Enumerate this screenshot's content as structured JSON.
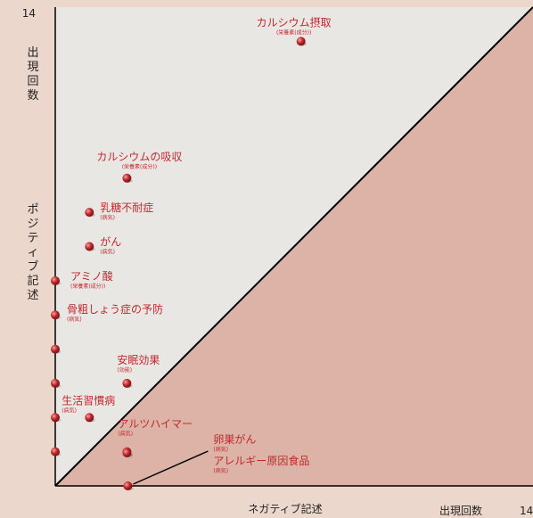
{
  "chart_data": {
    "type": "scatter",
    "title": "",
    "xlabel": "ネガティブ記述",
    "x_count_label": "出現回数",
    "ylabel": "ポジティブ記述",
    "y_count_label": "出現回数",
    "xlim": [
      0,
      14
    ],
    "ylim": [
      0,
      14
    ],
    "x_max_tick": "14",
    "y_max_tick": "14",
    "diagonal": true,
    "colors": {
      "upper_region": "#e9e7e4",
      "lower_region": "#dcb3a6",
      "marker": "#c0272d",
      "label": "#c2282e"
    },
    "points": [
      {
        "name": "カルシウム摂取",
        "sub": "(栄養素(成分))",
        "x": 7.2,
        "y": 13.0
      },
      {
        "name": "カルシウムの吸収",
        "sub": "(栄養素(成分))",
        "x": 2.1,
        "y": 9.0
      },
      {
        "name": "乳糖不耐症",
        "sub": "(病気)",
        "x": 1.0,
        "y": 8.0
      },
      {
        "name": "がん",
        "sub": "(病気)",
        "x": 1.0,
        "y": 7.0
      },
      {
        "name": "アミノ酸",
        "sub": "(栄養素(成分))",
        "x": 0,
        "y": 6.0
      },
      {
        "name": "骨粗しょう症の予防",
        "sub": "(病気)",
        "x": 0,
        "y": 5.0
      },
      {
        "name": "",
        "sub": "",
        "x": 0,
        "y": 4.0
      },
      {
        "name": "安眠効果",
        "sub": "(効能)",
        "x": 2.1,
        "y": 3.0
      },
      {
        "name": "",
        "sub": "",
        "x": 0,
        "y": 3.0
      },
      {
        "name": "生活習慣病",
        "sub": "(病気)",
        "x": 1.0,
        "y": 2.0
      },
      {
        "name": "",
        "sub": "",
        "x": 0,
        "y": 2.0
      },
      {
        "name": "アルツハイマー",
        "sub": "(病気)",
        "x": 2.1,
        "y": 1.0
      },
      {
        "name": "",
        "sub": "",
        "x": 0,
        "y": 1.0
      },
      {
        "name": "卵巣がん",
        "sub": "(病気)",
        "x": 2.1,
        "y": 0
      },
      {
        "name": "アレルギー原因食品",
        "sub": "(病気)",
        "x": 2.1,
        "y": 0
      }
    ]
  }
}
